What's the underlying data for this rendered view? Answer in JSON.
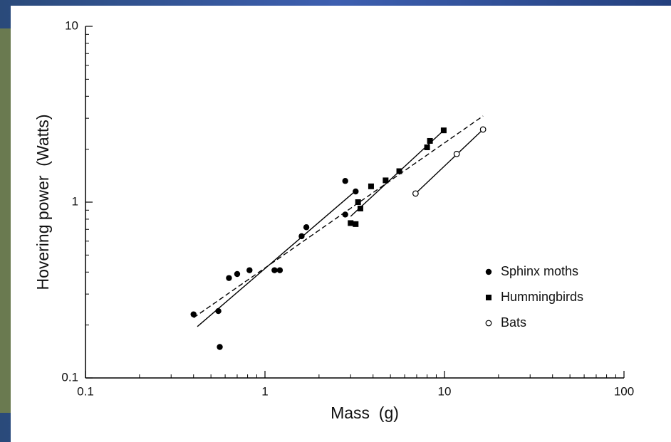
{
  "chart_data": {
    "type": "scatter",
    "x_label": "Mass  (g)",
    "y_label": "Hovering power  (Watts)",
    "log_x": true,
    "log_y": true,
    "xlim": [
      0.1,
      100
    ],
    "ylim": [
      0.1,
      10
    ],
    "xticks": [
      0.1,
      1,
      10,
      100
    ],
    "yticks": [
      0.1,
      1,
      10
    ],
    "xminorticks": [
      0.2,
      0.3,
      0.4,
      0.5,
      0.6,
      0.7,
      0.8,
      0.9,
      2,
      3,
      4,
      5,
      6,
      7,
      8,
      9,
      20,
      30,
      40,
      50,
      60,
      70,
      80,
      90
    ],
    "yminorticks": [
      0.2,
      0.3,
      0.4,
      0.5,
      0.6,
      0.7,
      0.8,
      0.9,
      2,
      3,
      4,
      5,
      6,
      7,
      8,
      9
    ],
    "legend": "right",
    "series": [
      {
        "name": "Sphinx moths",
        "marker": "circle",
        "color": "#000000",
        "x": [
          0.4,
          0.55,
          0.56,
          0.63,
          0.7,
          0.82,
          1.13,
          1.21,
          1.6,
          1.7,
          2.8,
          2.8,
          3.2
        ],
        "values": [
          0.23,
          0.24,
          0.15,
          0.37,
          0.39,
          0.41,
          0.41,
          0.41,
          0.64,
          0.72,
          1.32,
          0.85,
          1.15
        ]
      },
      {
        "name": "Hummingbirds",
        "marker": "square",
        "color": "#000000",
        "x": [
          3.0,
          3.2,
          3.3,
          3.4,
          3.9,
          4.7,
          5.6,
          8.0,
          8.3,
          9.9
        ],
        "values": [
          0.76,
          0.75,
          1.0,
          0.92,
          1.23,
          1.33,
          1.5,
          2.05,
          2.23,
          2.56
        ]
      },
      {
        "name": "Bats",
        "marker": "open-circle",
        "color": "#000000",
        "x": [
          6.9,
          11.7,
          16.4
        ],
        "values": [
          1.12,
          1.88,
          2.59
        ]
      }
    ],
    "fit_lines": [
      {
        "style": "solid",
        "x": [
          0.42,
          3.2
        ],
        "values": [
          0.196,
          1.16
        ]
      },
      {
        "style": "solid",
        "x": [
          3.0,
          9.9
        ],
        "values": [
          0.83,
          2.56
        ]
      },
      {
        "style": "solid",
        "x": [
          6.9,
          16.4
        ],
        "values": [
          1.12,
          2.59
        ]
      },
      {
        "style": "dashed",
        "x": [
          0.4,
          16.4
        ],
        "values": [
          0.22,
          3.09
        ]
      }
    ]
  }
}
